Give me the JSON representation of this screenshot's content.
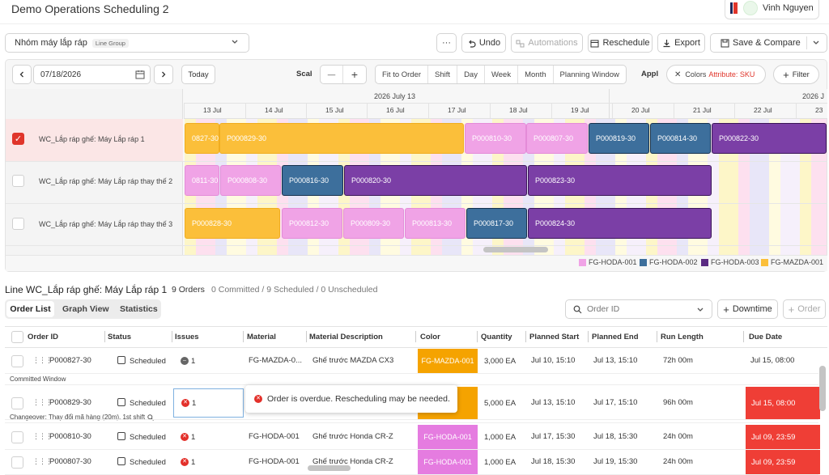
{
  "app": {
    "title": "Demo Operations Scheduling 2",
    "user": {
      "name": "Vinh Nguyen"
    }
  },
  "toolbar": {
    "line_group": {
      "value": "Nhóm máy lắp ráp",
      "tag": "Line Group"
    },
    "more": "···",
    "undo": "Undo",
    "automations": "Automations",
    "reschedule": "Reschedule",
    "export": "Export",
    "save_compare": "Save & Compare"
  },
  "gantt_toolbar": {
    "date": "07/18/2026",
    "today": "Today",
    "scale_label": "Scale",
    "zoom_out": "—",
    "zoom_in": "+",
    "view_buttons": [
      "Fit to Order",
      "Shift",
      "Day",
      "Week",
      "Month",
      "Planning Window"
    ],
    "apply_label": "Appl",
    "color_chip_label": "Colors",
    "color_chip_value": "Attribute: SKU",
    "filter": "Filter"
  },
  "timeline": {
    "weeks": [
      "2026 July 13",
      "2026 J"
    ],
    "days": [
      "13 Jul",
      "14 Jul",
      "15 Jul",
      "16 Jul",
      "17 Jul",
      "18 Jul",
      "19 Jul",
      "20 Jul",
      "21 Jul",
      "22 Jul",
      "23"
    ]
  },
  "gantt_rows": [
    {
      "label": "WC_Lắp ráp ghế: Máy Lắp ráp 1",
      "checked": true,
      "bars": [
        {
          "text": "0827-30",
          "sku": "mazda"
        },
        {
          "text": "P000829-30",
          "sku": "mazda"
        },
        {
          "text": "P000810-30",
          "sku": "hoda1"
        },
        {
          "text": "P000807-30",
          "sku": "hoda1"
        },
        {
          "text": "P000819-30",
          "sku": "hoda2"
        },
        {
          "text": "P000814-30",
          "sku": "hoda2"
        },
        {
          "text": "P000822-30",
          "sku": "hoda3"
        }
      ]
    },
    {
      "label": "WC_Lắp ráp ghế: Máy Lắp ráp thay thế 2",
      "checked": false,
      "bars": [
        {
          "text": "0811-30",
          "sku": "hoda1"
        },
        {
          "text": "P000808-30",
          "sku": "hoda1"
        },
        {
          "text": "P000816-30",
          "sku": "hoda2"
        },
        {
          "text": "P000820-30",
          "sku": "hoda3"
        },
        {
          "text": "P000823-30",
          "sku": "hoda3"
        }
      ]
    },
    {
      "label": "WC_Lắp ráp ghế: Máy Lắp ráp thay thế 3",
      "checked": false,
      "bars": [
        {
          "text": "P000828-30",
          "sku": "mazda"
        },
        {
          "text": "P000812-30",
          "sku": "hoda1"
        },
        {
          "text": "P000809-30",
          "sku": "hoda1"
        },
        {
          "text": "P000813-30",
          "sku": "hoda1"
        },
        {
          "text": "P000817-30",
          "sku": "hoda2"
        },
        {
          "text": "P000824-30",
          "sku": "hoda3"
        }
      ]
    }
  ],
  "legend": [
    {
      "label": "FG-HODA-001",
      "color": "#f0a3e6"
    },
    {
      "label": "FG-HODA-002",
      "color": "#3d6f9c"
    },
    {
      "label": "FG-HODA-003",
      "color": "#5a2a82"
    },
    {
      "label": "FG-MAZDA-001",
      "color": "#fbbf3a"
    }
  ],
  "line_summary": {
    "line": "Line WC_Lắp ráp ghế: Máy Lắp ráp 1",
    "orders": "9 Orders",
    "counts": "0 Committed / 9 Scheduled / 0 Unscheduled"
  },
  "tabs": [
    "Order List",
    "Graph View",
    "Statistics"
  ],
  "search": {
    "placeholder": "Order ID"
  },
  "downtime": "Downtime",
  "add_order": "Order",
  "table": {
    "columns": [
      "Order ID",
      "Status",
      "Issues",
      "Material",
      "Material Description",
      "Color",
      "Quantity",
      "Planned Start",
      "Planned End",
      "Run Length",
      "Due Date"
    ],
    "rows": [
      {
        "order_id": "P000827-30",
        "status": "Scheduled",
        "issues": "1",
        "issue_kind": "gray",
        "material": "FG-MAZDA-0...",
        "desc": "Ghế trước MAZDA CX3",
        "color": "FG-MAZDA-001",
        "color_hex": "#f5a300",
        "qty": "3,000 EA",
        "start": "Jul 10, 15:10",
        "end": "Jul 13, 15:10",
        "run": "72h 00m",
        "due": "Jul 15, 08:00",
        "due_overdue": false
      },
      {
        "order_id": "P000829-30",
        "status": "Scheduled",
        "issues": "1",
        "issue_kind": "red",
        "material": "",
        "desc": "",
        "color": "-001",
        "color_hex": "#f5a300",
        "qty": "5,000 EA",
        "start": "Jul 13, 15:10",
        "end": "Jul 17, 15:10",
        "run": "96h 00m",
        "due": "Jul 15, 08:00",
        "due_overdue": true
      },
      {
        "order_id": "P000810-30",
        "status": "Scheduled",
        "issues": "1",
        "issue_kind": "red",
        "material": "FG-HODA-001",
        "desc": "Ghế trước Honda CR-Z",
        "color": "FG-HODA-001",
        "color_hex": "#e57ce0",
        "qty": "1,000 EA",
        "start": "Jul 17, 15:30",
        "end": "Jul 18, 15:30",
        "run": "24h 00m",
        "due": "Jul 09, 23:59",
        "due_overdue": true
      },
      {
        "order_id": "P000807-30",
        "status": "Scheduled",
        "issues": "1",
        "issue_kind": "red",
        "material": "FG-HODA-001",
        "desc": "Ghế trước Honda CR-Z",
        "color": "FG-HODA-001",
        "color_hex": "#e57ce0",
        "qty": "1,000 EA",
        "start": "Jul 18, 15:30",
        "end": "Jul 19, 15:30",
        "run": "24h 00m",
        "due": "Jul 09, 23:59",
        "due_overdue": true
      }
    ],
    "separators": [
      "Committed Window",
      "Changeover: Thay đổi mã hàng (20m), 1st shift"
    ]
  },
  "tooltip": {
    "text": "Order is overdue. Rescheduling may be needed."
  }
}
